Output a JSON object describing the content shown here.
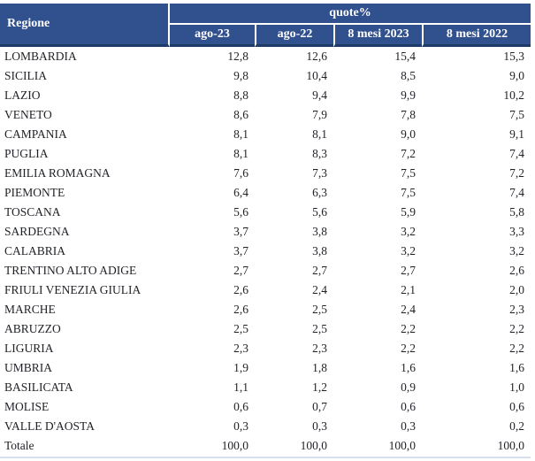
{
  "chart_data": {
    "type": "table",
    "title": "quote%",
    "row_header_label": "Regione",
    "columns": [
      "ago-23",
      "ago-22",
      "8 mesi 2023",
      "8 mesi 2022"
    ],
    "rows": [
      {
        "name": "LOMBARDIA",
        "values": [
          "12,8",
          "12,6",
          "15,4",
          "15,3"
        ]
      },
      {
        "name": "SICILIA",
        "values": [
          "9,8",
          "10,4",
          "8,5",
          "9,0"
        ]
      },
      {
        "name": "LAZIO",
        "values": [
          "8,8",
          "9,4",
          "9,9",
          "10,2"
        ]
      },
      {
        "name": "VENETO",
        "values": [
          "8,6",
          "7,9",
          "7,8",
          "7,5"
        ]
      },
      {
        "name": "CAMPANIA",
        "values": [
          "8,1",
          "8,1",
          "9,0",
          "9,1"
        ]
      },
      {
        "name": "PUGLIA",
        "values": [
          "8,1",
          "8,3",
          "7,2",
          "7,4"
        ]
      },
      {
        "name": "EMILIA ROMAGNA",
        "values": [
          "7,6",
          "7,3",
          "7,5",
          "7,2"
        ]
      },
      {
        "name": "PIEMONTE",
        "values": [
          "6,4",
          "6,3",
          "7,5",
          "7,4"
        ]
      },
      {
        "name": "TOSCANA",
        "values": [
          "5,6",
          "5,6",
          "5,9",
          "5,8"
        ]
      },
      {
        "name": "SARDEGNA",
        "values": [
          "3,7",
          "3,8",
          "3,2",
          "3,3"
        ]
      },
      {
        "name": "CALABRIA",
        "values": [
          "3,7",
          "3,8",
          "3,2",
          "3,2"
        ]
      },
      {
        "name": "TRENTINO ALTO ADIGE",
        "values": [
          "2,7",
          "2,7",
          "2,7",
          "2,6"
        ]
      },
      {
        "name": "FRIULI VENEZIA GIULIA",
        "values": [
          "2,6",
          "2,4",
          "2,1",
          "2,0"
        ]
      },
      {
        "name": "MARCHE",
        "values": [
          "2,6",
          "2,5",
          "2,4",
          "2,3"
        ]
      },
      {
        "name": "ABRUZZO",
        "values": [
          "2,5",
          "2,5",
          "2,2",
          "2,2"
        ]
      },
      {
        "name": "LIGURIA",
        "values": [
          "2,3",
          "2,3",
          "2,2",
          "2,2"
        ]
      },
      {
        "name": "UMBRIA",
        "values": [
          "1,9",
          "1,8",
          "1,6",
          "1,6"
        ]
      },
      {
        "name": "BASILICATA",
        "values": [
          "1,1",
          "1,2",
          "0,9",
          "1,0"
        ]
      },
      {
        "name": "MOLISE",
        "values": [
          "0,6",
          "0,7",
          "0,6",
          "0,6"
        ]
      },
      {
        "name": "VALLE D'AOSTA",
        "values": [
          "0,3",
          "0,3",
          "0,3",
          "0,2"
        ]
      },
      {
        "name": "Totale",
        "values": [
          "100,0",
          "100,0",
          "100,0",
          "100,0"
        ]
      }
    ]
  },
  "colors": {
    "header_bg": "#30508E",
    "header_border": "#1E3A66",
    "header_separator": "#FFFFFF",
    "header_text": "#FFFFFF",
    "body_text": "#1F2126",
    "bottom_rule": "#D8DFEE"
  }
}
